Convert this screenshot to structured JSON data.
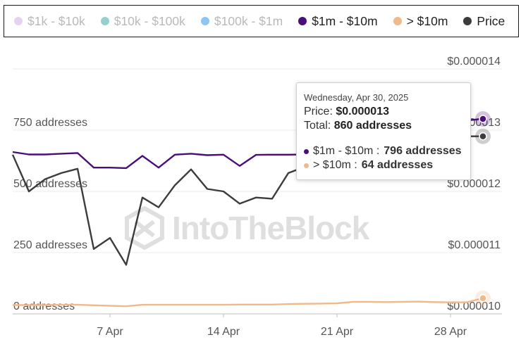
{
  "legend": [
    {
      "label": "$1k - $10k",
      "color": "#e6d3f2",
      "active": false
    },
    {
      "label": "$10k - $100k",
      "color": "#93d2cc",
      "active": false
    },
    {
      "label": "$100k - $1m",
      "color": "#8ec6f3",
      "active": false
    },
    {
      "label": "$1m - $10m",
      "color": "#4a0e7a",
      "active": true
    },
    {
      "label": "> $10m",
      "color": "#f0b98a",
      "active": true
    },
    {
      "label": "Price",
      "color": "#3c3c3c",
      "active": true
    }
  ],
  "chart_data": {
    "type": "line",
    "y_left_label_suffix": " addresses",
    "y_left_ticks": [
      {
        "value": 0,
        "label": "0 addresses"
      },
      {
        "value": 250,
        "label": "250 addresses"
      },
      {
        "value": 500,
        "label": "500 addresses"
      },
      {
        "value": 750,
        "label": "750 addresses"
      }
    ],
    "y_right_ticks": [
      {
        "value": 1e-05,
        "label": "$0.000010"
      },
      {
        "value": 1.1e-05,
        "label": "$0.000011"
      },
      {
        "value": 1.2e-05,
        "label": "$0.000012"
      },
      {
        "value": 1.3e-05,
        "label": "$0.000013"
      },
      {
        "value": 1.4e-05,
        "label": "$0.000014"
      }
    ],
    "x_ticks": [
      {
        "index": 6,
        "label": "7 Apr"
      },
      {
        "index": 13,
        "label": "14 Apr"
      },
      {
        "index": 20,
        "label": "21 Apr"
      },
      {
        "index": 27,
        "label": "28 Apr"
      }
    ],
    "x_count": 30,
    "ylim_left": [
      0,
      1000
    ],
    "ylim_right": [
      1e-05,
      1.4e-05
    ],
    "series": [
      {
        "name": "$1m - $10m",
        "axis": "left",
        "color": "#4a0e7a",
        "values": [
          661,
          651,
          651,
          654,
          657,
          597,
          597,
          595,
          645,
          597,
          650,
          654,
          648,
          650,
          604,
          649,
          650,
          650,
          651,
          650,
          650,
          650,
          650,
          650,
          650,
          650,
          650,
          650,
          790,
          796
        ]
      },
      {
        "name": "> $10m",
        "axis": "left",
        "color": "#f0b98a",
        "values": [
          36,
          36,
          36,
          37,
          37,
          35,
          33,
          31,
          37,
          37,
          37,
          37,
          37,
          37,
          38,
          38,
          38,
          40,
          41,
          42,
          43,
          49,
          49,
          48,
          49,
          50,
          48,
          47,
          47,
          64
        ]
      },
      {
        "name": "Price",
        "axis": "right",
        "color": "#3c3c3c",
        "values": [
          1.26e-05,
          1.2e-05,
          1.22e-05,
          1.23e-05,
          1.237e-05,
          1.106e-05,
          1.124e-05,
          1.08e-05,
          1.19e-05,
          1.174e-05,
          1.21e-05,
          1.236e-05,
          1.204e-05,
          1.2e-05,
          1.18e-05,
          1.19e-05,
          1.188e-05,
          1.23e-05,
          1.24e-05,
          1.26e-05,
          1.27e-05,
          1.28e-05,
          1.29e-05,
          1.31e-05,
          1.36e-05,
          1.37e-05,
          1.33e-05,
          1.31e-05,
          1.29e-05,
          1.29e-05
        ]
      }
    ]
  },
  "tooltip": {
    "date": "Wednesday, Apr 30, 2025",
    "price_label": "Price:",
    "price_value": "$0.000013",
    "total_label": "Total:",
    "total_value": "860 addresses",
    "series": [
      {
        "label": "$1m - $10m :",
        "value": "796 addresses",
        "color": "#4a0e7a"
      },
      {
        "label": "> $10m :",
        "value": "64 addresses",
        "color": "#f0b98a"
      }
    ]
  },
  "watermark": {
    "text": "IntoTheBlock"
  }
}
